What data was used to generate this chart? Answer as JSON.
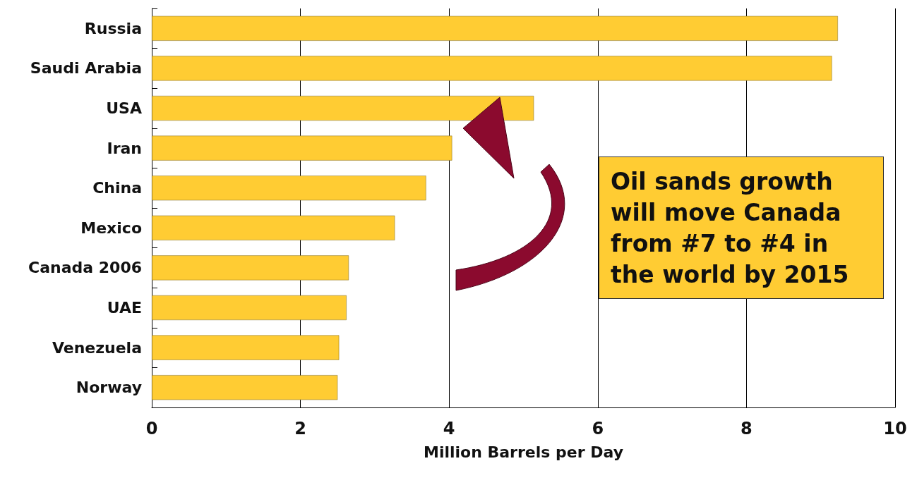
{
  "chart_data": {
    "type": "bar",
    "orientation": "horizontal",
    "xlabel": "Million Barrels per Day",
    "categories": [
      "Russia",
      "Saudi Arabia",
      "USA",
      "Iran",
      "China",
      "Mexico",
      "Canada 2006",
      "UAE",
      "Venezuela",
      "Norway"
    ],
    "values": [
      9.23,
      9.15,
      5.14,
      4.04,
      3.69,
      3.27,
      2.65,
      2.62,
      2.52,
      2.5
    ],
    "color": "#ffcc33",
    "xlim": [
      0,
      10
    ],
    "xticks": [
      0,
      2,
      4,
      6,
      8,
      10
    ],
    "grid": "x",
    "annotations": [
      "Oil sands growth will move Canada from #7 to #4 in the world by 2015"
    ]
  }
}
